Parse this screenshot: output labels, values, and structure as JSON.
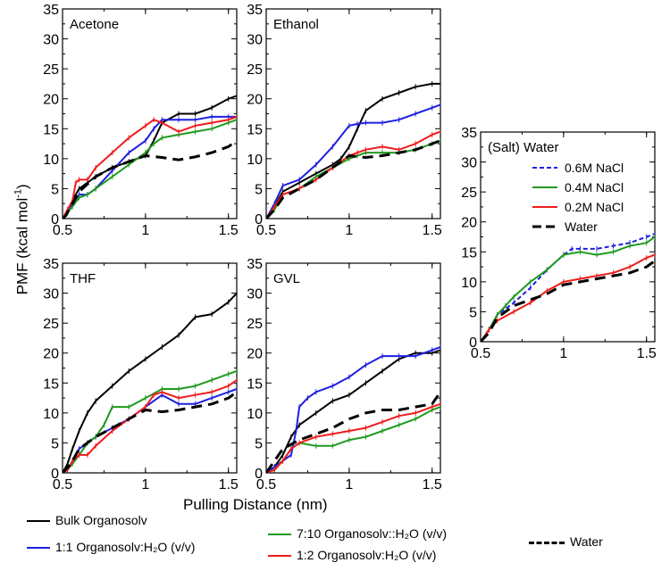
{
  "figure": {
    "ylabel_main": "PMF (kcal mol",
    "ylabel_sup": "-1",
    "ylabel_close": ")",
    "xlabel": "Pulling Distance (nm)"
  },
  "legend": {
    "bulk": "Bulk Organosolv",
    "one_one": "1:1 Organosolv:H₂O (v/v)",
    "seven_ten": "7:10 Organosolv::H₂O (v/v)",
    "one_two": "1:2 Organosolv:H₂O (v/v)",
    "water": "Water"
  },
  "colors": {
    "bulk": "#000000",
    "one_one": "#1f1fe0",
    "seven_ten": "#1e9a1e",
    "one_two": "#ee1c1c",
    "water": "#000000"
  },
  "chart_data": [
    {
      "type": "line",
      "panel": "Acetone",
      "title": "Acetone",
      "xlim": [
        0.5,
        1.55
      ],
      "ylim": [
        0,
        35
      ],
      "xticks": [
        0.5,
        1,
        1.5
      ],
      "yticks": [
        0,
        5,
        10,
        15,
        20,
        25,
        30,
        35
      ],
      "series": [
        {
          "name": "Bulk Organosolv",
          "key": "bulk",
          "x": [
            0.5,
            0.53,
            0.56,
            0.6,
            0.65,
            0.7,
            0.8,
            0.9,
            1.0,
            1.05,
            1.1,
            1.2,
            1.3,
            1.4,
            1.5,
            1.55
          ],
          "y": [
            0,
            1,
            3,
            5,
            6,
            7,
            8.5,
            9.5,
            10.5,
            13,
            16,
            17.5,
            17.5,
            18.5,
            20,
            20.5
          ]
        },
        {
          "name": "1:1 Organosolv:H2O",
          "key": "one_one",
          "x": [
            0.5,
            0.53,
            0.56,
            0.6,
            0.65,
            0.7,
            0.8,
            0.9,
            1.0,
            1.05,
            1.1,
            1.2,
            1.3,
            1.4,
            1.5,
            1.55
          ],
          "y": [
            0,
            1,
            2.5,
            4,
            4,
            5,
            8,
            11,
            13,
            15,
            16.5,
            16.5,
            16.5,
            17,
            17,
            17
          ]
        },
        {
          "name": "7:10 Organosolv::H2O",
          "key": "seven_ten",
          "x": [
            0.5,
            0.53,
            0.56,
            0.6,
            0.65,
            0.7,
            0.8,
            0.9,
            1.0,
            1.05,
            1.1,
            1.2,
            1.3,
            1.4,
            1.5,
            1.55
          ],
          "y": [
            0,
            1,
            2,
            3.5,
            4,
            5,
            7,
            9,
            11,
            12.5,
            13.5,
            14,
            14.5,
            15,
            16,
            16.5
          ]
        },
        {
          "name": "1:2 Organosolv:H2O",
          "key": "one_two",
          "x": [
            0.5,
            0.53,
            0.56,
            0.58,
            0.6,
            0.65,
            0.7,
            0.8,
            0.9,
            1.0,
            1.05,
            1.1,
            1.2,
            1.3,
            1.4,
            1.5,
            1.55
          ],
          "y": [
            0,
            1.5,
            3,
            6,
            6.5,
            6.5,
            8.5,
            11,
            13.5,
            15.5,
            16.5,
            16,
            14.5,
            15.5,
            16,
            16.5,
            17
          ]
        },
        {
          "name": "Water",
          "key": "water",
          "x": [
            0.5,
            0.52,
            0.55,
            0.6,
            0.7,
            0.8,
            0.9,
            1.0,
            1.1,
            1.2,
            1.3,
            1.4,
            1.5,
            1.55
          ],
          "y": [
            0,
            0.5,
            2,
            4.5,
            7,
            8.5,
            9.5,
            10.5,
            10.2,
            9.8,
            10.3,
            11,
            12,
            13
          ]
        }
      ]
    },
    {
      "type": "line",
      "panel": "Ethanol",
      "title": "Ethanol",
      "xlim": [
        0.5,
        1.55
      ],
      "ylim": [
        0,
        35
      ],
      "xticks": [
        0.5,
        1,
        1.5
      ],
      "yticks": [
        0,
        5,
        10,
        15,
        20,
        25,
        30,
        35
      ],
      "series": [
        {
          "name": "Bulk Organosolv",
          "key": "bulk",
          "x": [
            0.5,
            0.55,
            0.6,
            0.7,
            0.8,
            0.9,
            0.95,
            1.0,
            1.05,
            1.1,
            1.2,
            1.3,
            1.4,
            1.5,
            1.55
          ],
          "y": [
            0,
            2,
            4.5,
            6,
            7.5,
            9,
            10,
            12,
            15,
            18,
            20,
            21,
            22,
            22.5,
            22.5
          ]
        },
        {
          "name": "1:1 Organosolv:H2O",
          "key": "one_one",
          "x": [
            0.5,
            0.55,
            0.6,
            0.7,
            0.8,
            0.9,
            1.0,
            1.05,
            1.1,
            1.2,
            1.3,
            1.4,
            1.5,
            1.55
          ],
          "y": [
            0,
            2.5,
            5.5,
            6.5,
            9,
            12,
            15.5,
            15.8,
            16,
            16,
            16.5,
            17.5,
            18.5,
            19
          ]
        },
        {
          "name": "7:10 Organosolv::H2O",
          "key": "seven_ten",
          "x": [
            0.5,
            0.55,
            0.6,
            0.7,
            0.8,
            0.9,
            1.0,
            1.05,
            1.1,
            1.2,
            1.3,
            1.4,
            1.5,
            1.55
          ],
          "y": [
            0,
            1.5,
            4,
            5,
            7,
            8.5,
            10,
            10.5,
            11,
            11,
            11,
            11.5,
            12.5,
            13
          ]
        },
        {
          "name": "1:2 Organosolv:H2O",
          "key": "one_two",
          "x": [
            0.5,
            0.55,
            0.6,
            0.7,
            0.8,
            0.9,
            1.0,
            1.05,
            1.1,
            1.2,
            1.3,
            1.4,
            1.5,
            1.55
          ],
          "y": [
            0,
            2,
            4,
            5,
            6.5,
            8.5,
            10.5,
            11,
            11.5,
            12,
            11.5,
            12.5,
            14,
            14.5
          ]
        },
        {
          "name": "Water",
          "key": "water",
          "x": [
            0.5,
            0.55,
            0.6,
            0.7,
            0.8,
            0.9,
            1.0,
            1.1,
            1.2,
            1.3,
            1.4,
            1.5,
            1.55
          ],
          "y": [
            0,
            1.5,
            3.5,
            5,
            6.5,
            8.5,
            10.5,
            10.2,
            10.5,
            11,
            11.5,
            12.5,
            13
          ]
        }
      ]
    },
    {
      "type": "line",
      "panel": "THF",
      "title": "THF",
      "xlim": [
        0.5,
        1.55
      ],
      "ylim": [
        0,
        35
      ],
      "xticks": [
        0.5,
        1,
        1.5
      ],
      "yticks": [
        0,
        5,
        10,
        15,
        20,
        25,
        30,
        35
      ],
      "series": [
        {
          "name": "Bulk Organosolv",
          "key": "bulk",
          "x": [
            0.5,
            0.53,
            0.56,
            0.6,
            0.65,
            0.7,
            0.8,
            0.9,
            1.0,
            1.1,
            1.2,
            1.3,
            1.4,
            1.5,
            1.55
          ],
          "y": [
            0,
            1.5,
            4,
            7,
            10,
            12,
            14.5,
            17,
            19,
            21,
            23,
            26,
            26.5,
            28.5,
            30
          ]
        },
        {
          "name": "1:1 Organosolv:H2O",
          "key": "one_one",
          "x": [
            0.5,
            0.53,
            0.56,
            0.6,
            0.65,
            0.7,
            0.8,
            0.9,
            1.0,
            1.1,
            1.2,
            1.3,
            1.4,
            1.5,
            1.55
          ],
          "y": [
            0,
            0.5,
            2,
            4,
            5,
            6,
            7.5,
            9,
            11,
            13,
            11.5,
            11.5,
            12.5,
            13.5,
            14
          ]
        },
        {
          "name": "7:10 Organosolv::H2O",
          "key": "seven_ten",
          "x": [
            0.5,
            0.53,
            0.56,
            0.6,
            0.65,
            0.7,
            0.75,
            0.8,
            0.9,
            1.0,
            1.1,
            1.2,
            1.3,
            1.4,
            1.5,
            1.55
          ],
          "y": [
            0,
            0.5,
            1.5,
            3,
            5,
            6,
            8,
            11,
            11,
            12.5,
            14,
            14,
            14.5,
            15.5,
            16.5,
            17
          ]
        },
        {
          "name": "1:2 Organosolv:H2O",
          "key": "one_two",
          "x": [
            0.5,
            0.53,
            0.56,
            0.6,
            0.65,
            0.7,
            0.8,
            0.9,
            1.0,
            1.05,
            1.1,
            1.2,
            1.3,
            1.4,
            1.5,
            1.55
          ],
          "y": [
            0,
            0.5,
            2,
            3,
            3,
            4.5,
            7,
            9,
            11,
            13,
            13.5,
            12.5,
            13,
            13.5,
            14.5,
            15.5
          ]
        },
        {
          "name": "Water",
          "key": "water",
          "x": [
            0.5,
            0.55,
            0.6,
            0.7,
            0.8,
            0.9,
            1.0,
            1.1,
            1.2,
            1.3,
            1.4,
            1.5,
            1.55
          ],
          "y": [
            0,
            1.5,
            4,
            6,
            7.5,
            9,
            10.5,
            10.2,
            10.5,
            11,
            11.5,
            12.5,
            13.5
          ]
        }
      ]
    },
    {
      "type": "line",
      "panel": "GVL",
      "title": "GVL",
      "xlim": [
        0.5,
        1.55
      ],
      "ylim": [
        0,
        35
      ],
      "xticks": [
        0.5,
        1,
        1.5
      ],
      "yticks": [
        0,
        5,
        10,
        15,
        20,
        25,
        30,
        35
      ],
      "series": [
        {
          "name": "Bulk Organosolv",
          "key": "bulk",
          "x": [
            0.5,
            0.55,
            0.6,
            0.65,
            0.7,
            0.8,
            0.9,
            1.0,
            1.1,
            1.2,
            1.3,
            1.4,
            1.5,
            1.55
          ],
          "y": [
            0,
            1,
            3,
            6,
            8,
            10,
            12,
            13,
            15,
            17,
            19,
            20,
            20,
            20.5
          ]
        },
        {
          "name": "1:1 Organosolv:H2O",
          "key": "one_one",
          "x": [
            0.5,
            0.55,
            0.6,
            0.65,
            0.68,
            0.7,
            0.75,
            0.8,
            0.9,
            1.0,
            1.1,
            1.2,
            1.3,
            1.4,
            1.5,
            1.55
          ],
          "y": [
            0,
            1,
            2,
            3,
            7,
            11,
            12.5,
            13.5,
            14.5,
            16,
            18,
            19.5,
            19.5,
            19.5,
            20.5,
            21
          ]
        },
        {
          "name": "7:10 Organosolv::H2O",
          "key": "seven_ten",
          "x": [
            0.5,
            0.55,
            0.6,
            0.65,
            0.7,
            0.8,
            0.9,
            1.0,
            1.1,
            1.2,
            1.3,
            1.4,
            1.5,
            1.55
          ],
          "y": [
            0,
            0.5,
            2,
            4,
            5,
            4.5,
            4.5,
            5.5,
            6,
            7,
            8,
            9,
            10.5,
            11
          ]
        },
        {
          "name": "1:2 Organosolv:H2O",
          "key": "one_two",
          "x": [
            0.5,
            0.55,
            0.6,
            0.65,
            0.7,
            0.8,
            0.9,
            1.0,
            1.1,
            1.2,
            1.3,
            1.4,
            1.5,
            1.55
          ],
          "y": [
            0,
            0.5,
            2,
            4,
            5,
            6,
            6.5,
            7,
            7.5,
            8.5,
            9.5,
            10,
            11,
            11.5
          ]
        },
        {
          "name": "Water",
          "key": "water",
          "x": [
            0.5,
            0.6,
            0.7,
            0.8,
            0.9,
            1.0,
            1.1,
            1.2,
            1.3,
            1.4,
            1.5,
            1.55
          ],
          "y": [
            0,
            4,
            5.5,
            6.5,
            7.5,
            9,
            10,
            10.5,
            10.5,
            11,
            11.5,
            13.5
          ]
        }
      ]
    },
    {
      "type": "line",
      "panel": "(Salt) Water",
      "title": "(Salt) Water",
      "xlim": [
        0.5,
        1.55
      ],
      "ylim": [
        0,
        35
      ],
      "xticks": [
        0.5,
        1,
        1.5
      ],
      "yticks": [
        0,
        5,
        10,
        15,
        20,
        25,
        30,
        35
      ],
      "legend": {
        "position": "top-right",
        "entries": [
          "0.6M NaCl",
          "0.4M NaCl",
          "0.2M NaCl",
          "Water"
        ]
      },
      "series": [
        {
          "name": "0.6M NaCl",
          "key": "one_one",
          "dash": "5,3",
          "x": [
            0.5,
            0.55,
            0.6,
            0.7,
            0.8,
            0.9,
            1.0,
            1.05,
            1.1,
            1.2,
            1.3,
            1.4,
            1.5,
            1.55
          ],
          "y": [
            0,
            2,
            4.5,
            6.5,
            9,
            12,
            14.5,
            15.5,
            15.5,
            15.5,
            16,
            16.5,
            17.5,
            18
          ]
        },
        {
          "name": "0.4M NaCl",
          "key": "seven_ten",
          "x": [
            0.5,
            0.55,
            0.6,
            0.65,
            0.7,
            0.8,
            0.9,
            1.0,
            1.1,
            1.2,
            1.3,
            1.4,
            1.5,
            1.55
          ],
          "y": [
            0,
            2,
            4.5,
            6,
            7.5,
            10,
            12,
            14.5,
            15,
            14.5,
            15,
            16,
            16.5,
            17.5
          ]
        },
        {
          "name": "0.2M NaCl",
          "key": "one_two",
          "x": [
            0.5,
            0.55,
            0.6,
            0.7,
            0.8,
            0.9,
            1.0,
            1.1,
            1.2,
            1.3,
            1.4,
            1.5,
            1.55
          ],
          "y": [
            0,
            2,
            3.5,
            5,
            6.5,
            8.5,
            10,
            10.5,
            11,
            11.5,
            12.5,
            14,
            14.5
          ]
        },
        {
          "name": "Water",
          "key": "water",
          "x": [
            0.5,
            0.55,
            0.6,
            0.7,
            0.8,
            0.9,
            1.0,
            1.1,
            1.2,
            1.3,
            1.4,
            1.5,
            1.55
          ],
          "y": [
            0,
            1.5,
            4,
            6,
            7,
            8,
            9.5,
            10,
            10.5,
            11,
            11.5,
            12.5,
            13.5
          ]
        }
      ]
    }
  ]
}
